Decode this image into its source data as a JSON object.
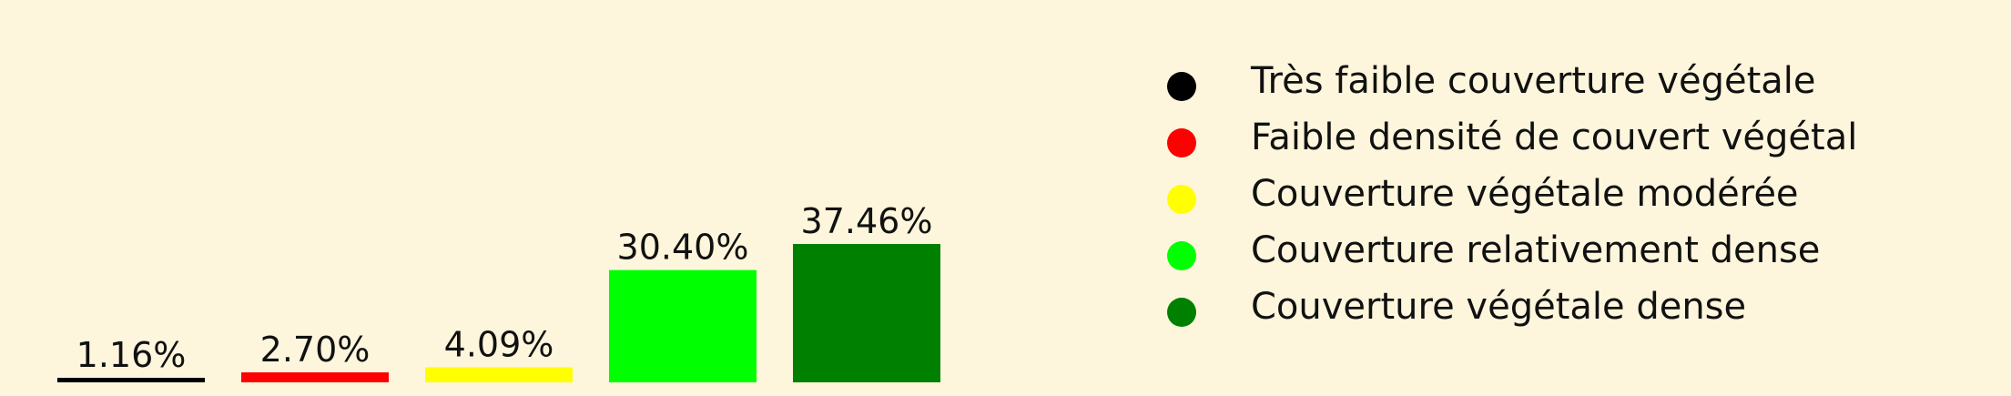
{
  "chart_data": {
    "type": "bar",
    "categories": [
      "Très faible couverture végétale",
      "Faible densité de couvert végétal",
      "Couverture végétale modérée",
      "Couverture relativement dense",
      "Couverture végétale dense"
    ],
    "values": [
      1.16,
      2.7,
      4.09,
      30.4,
      37.46
    ],
    "value_labels": [
      "1.16%",
      "2.70%",
      "4.09%",
      "30.40%",
      "37.46%"
    ],
    "colors": [
      "#000000",
      "#FF0000",
      "#FFFF00",
      "#00FF00",
      "#008000"
    ],
    "ylim": [
      0,
      37.46
    ],
    "grid": false,
    "legend_position": "right"
  },
  "colors": {
    "background": "#FDF6DC",
    "text": "#111111"
  }
}
